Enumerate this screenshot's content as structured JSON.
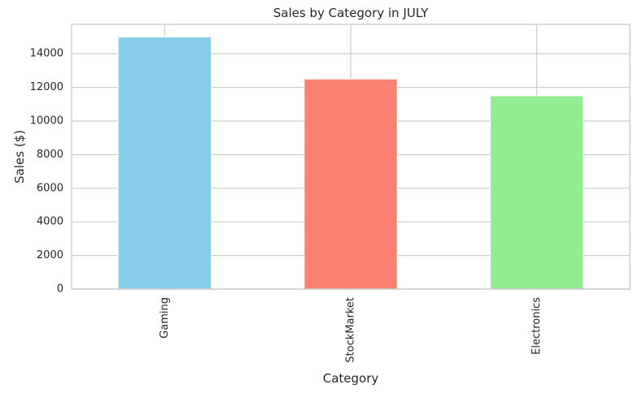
{
  "chart_data": {
    "type": "bar",
    "title": "Sales by Category in JULY",
    "xlabel": "Category",
    "ylabel": "Sales ($)",
    "categories": [
      "Gaming",
      "StockMarket",
      "Electronics"
    ],
    "values": [
      15000,
      12500,
      11500
    ],
    "colors": [
      "#87CEEB",
      "#FA8072",
      "#90EE90"
    ],
    "ylim": [
      0,
      15750
    ],
    "yticks": [
      0,
      2000,
      4000,
      6000,
      8000,
      10000,
      12000,
      14000
    ],
    "grid": true,
    "x_tick_rotation": "vertical"
  }
}
